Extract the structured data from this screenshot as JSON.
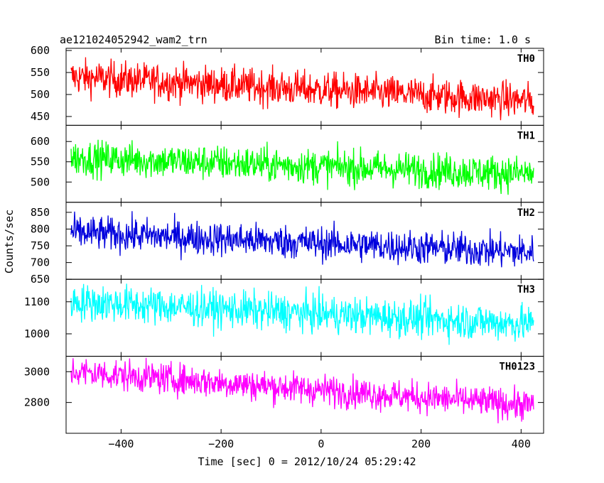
{
  "header": {
    "left_title": "ae121024052942_wam2_trn",
    "right_title": "Bin time: 1.0 s"
  },
  "chart_data": {
    "type": "line",
    "title": "ae121024052942_wam2_trn",
    "subtitle": "Bin time: 1.0 s",
    "xlabel": "Time [sec] 0 = 2012/10/24 05:29:42",
    "ylabel": "Counts/sec",
    "xlim": [
      -510,
      445
    ],
    "x_range": [
      -500,
      425
    ],
    "x_ticks": [
      -400,
      -200,
      0,
      200,
      400
    ],
    "x_tick_labels": [
      "−400",
      "−200",
      "0",
      "200",
      "400"
    ],
    "grid": false,
    "series": [
      {
        "name": "TH0",
        "color": "#ff0000",
        "ylim": [
          430,
          605
        ],
        "y_ticks": [
          450,
          500,
          550,
          600
        ],
        "trend_start": 540,
        "trend_end": 485,
        "noise_amplitude": 28
      },
      {
        "name": "TH1",
        "color": "#00ff00",
        "ylim": [
          450,
          640
        ],
        "y_ticks": [
          500,
          550,
          600
        ],
        "trend_start": 560,
        "trend_end": 520,
        "noise_amplitude": 30
      },
      {
        "name": "TH2",
        "color": "#0000dd",
        "ylim": [
          650,
          880
        ],
        "y_ticks": [
          650,
          700,
          750,
          800,
          850
        ],
        "trend_start": 790,
        "trend_end": 730,
        "noise_amplitude": 35
      },
      {
        "name": "TH3",
        "color": "#00ffff",
        "ylim": [
          930,
          1170
        ],
        "y_ticks": [
          1000,
          1100
        ],
        "trend_start": 1100,
        "trend_end": 1030,
        "noise_amplitude": 40
      },
      {
        "name": "TH0123",
        "color": "#ff00ff",
        "ylim": [
          2600,
          3100
        ],
        "y_ticks": [
          2800,
          3000
        ],
        "trend_start": 3000,
        "trend_end": 2780,
        "noise_amplitude": 70
      }
    ]
  }
}
